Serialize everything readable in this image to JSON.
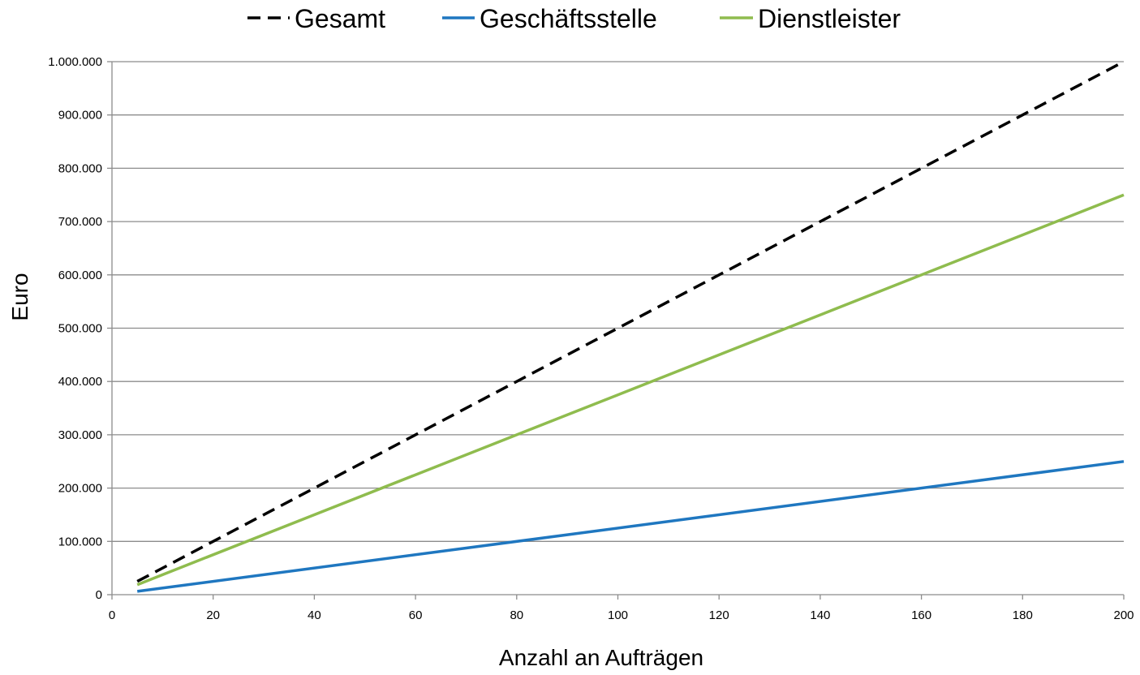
{
  "chart_data": {
    "type": "line",
    "title": "",
    "xlabel": "Anzahl an Aufträgen",
    "ylabel": "Euro",
    "xlim": [
      0,
      200
    ],
    "ylim": [
      0,
      1000000
    ],
    "x_ticks": [
      0,
      20,
      40,
      60,
      80,
      100,
      120,
      140,
      160,
      180,
      200
    ],
    "x_tick_labels": [
      "0",
      "20",
      "40",
      "60",
      "80",
      "100",
      "120",
      "140",
      "160",
      "180",
      "200"
    ],
    "y_ticks": [
      0,
      100000,
      200000,
      300000,
      400000,
      500000,
      600000,
      700000,
      800000,
      900000,
      1000000
    ],
    "y_tick_labels": [
      "0",
      "100.000",
      "200.000",
      "300.000",
      "400.000",
      "500.000",
      "600.000",
      "700.000",
      "800.000",
      "900.000",
      "1.000.000"
    ],
    "grid": "horizontal",
    "legend_position": "top",
    "series": [
      {
        "name": "Gesamt",
        "color": "#000000",
        "dashed": true,
        "x": [
          5,
          200
        ],
        "y": [
          25000,
          1000000
        ]
      },
      {
        "name": "Geschäftsstelle",
        "color": "#1f77c0",
        "dashed": false,
        "x": [
          5,
          200
        ],
        "y": [
          6250,
          250000
        ]
      },
      {
        "name": "Dienstleister",
        "color": "#8fbc4e",
        "dashed": false,
        "x": [
          5,
          200
        ],
        "y": [
          18750,
          750000
        ]
      }
    ]
  }
}
